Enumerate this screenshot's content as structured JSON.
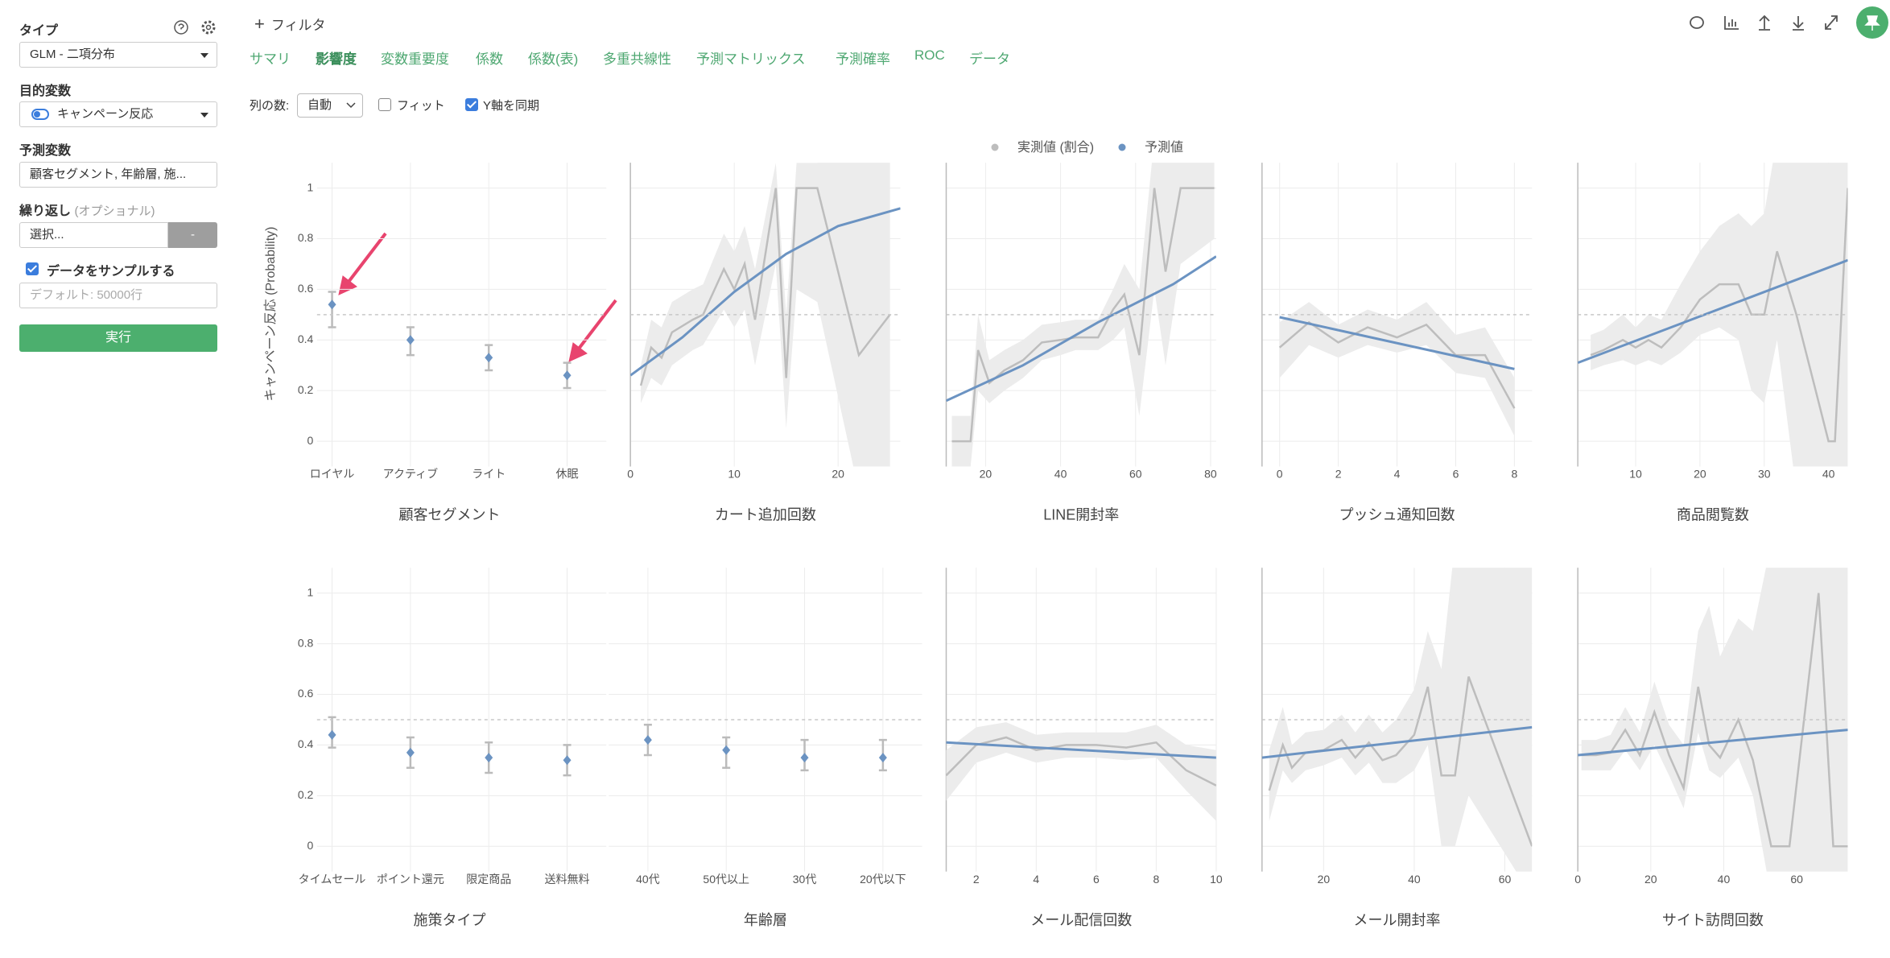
{
  "sidebar": {
    "type_label": "タイプ",
    "type_value": "GLM - 二項分布",
    "target_label": "目的変数",
    "target_value": "キャンペーン反応",
    "predictors_label": "予測変数",
    "predictors_value": "顧客セグメント, 年齢層, 施...",
    "repeat_label": "繰り返し",
    "repeat_hint": "(オプショナル)",
    "repeat_value": "選択...",
    "repeat_button": "-",
    "sample_label": "データをサンプルする",
    "sample_checked": true,
    "sample_placeholder": "デフォルト: 50000行",
    "run_button": "実行"
  },
  "toolbar": {
    "filter": "フィルタ",
    "tabs": [
      "サマリ",
      "影響度",
      "変数重要度",
      "係数",
      "係数(表)",
      "多重共線性",
      "予測マトリックス",
      "予測確率",
      "ROC",
      "データ"
    ],
    "active_tab": 1
  },
  "options": {
    "columns_label": "列の数:",
    "columns_value": "自動",
    "fit_label": "フィット",
    "fit_checked": false,
    "sync_label": "Y軸を同期",
    "sync_checked": true
  },
  "legend": [
    {
      "name": "実測値 (割合)",
      "color": "#bdbdbd"
    },
    {
      "name": "予測値",
      "color": "#6b93c2"
    }
  ],
  "band_color": "#ececec",
  "y_axis_title": "キャンペーン反応 (Probability)",
  "chart_data": [
    {
      "type": "errorbar",
      "title": "顧客セグメント",
      "categories": [
        "ロイヤル",
        "アクティブ",
        "ライト",
        "休眠"
      ],
      "values": [
        0.54,
        0.4,
        0.33,
        0.26
      ],
      "lower": [
        0.45,
        0.34,
        0.28,
        0.21
      ],
      "upper": [
        0.59,
        0.45,
        0.38,
        0.31
      ],
      "ylim": [
        -0.1,
        1.1
      ],
      "yticks": [
        0,
        0.2,
        0.4,
        0.6,
        0.8,
        1
      ],
      "reference": 0.5
    },
    {
      "type": "line",
      "title": "カート追加回数",
      "xlim": [
        0,
        26
      ],
      "xticks": [
        0,
        10,
        20
      ],
      "ylim": [
        -0.1,
        1.1
      ],
      "yticks": [
        0,
        0.2,
        0.4,
        0.6,
        0.8,
        1
      ],
      "reference": 0.5,
      "actual": {
        "x": [
          1,
          2,
          3,
          4,
          6,
          7,
          9,
          10,
          11,
          12,
          14,
          15,
          16,
          18,
          22,
          25
        ],
        "values": [
          0.22,
          0.37,
          0.33,
          0.43,
          0.48,
          0.5,
          0.68,
          0.6,
          0.7,
          0.48,
          1,
          0.25,
          1,
          1,
          0.34,
          0.5
        ],
        "lower": [
          0.15,
          0.25,
          0.22,
          0.3,
          0.36,
          0.38,
          0.52,
          0.45,
          0.52,
          0.3,
          0.7,
          0.05,
          0.6,
          0.55,
          -0.2,
          -0.2
        ],
        "upper": [
          0.3,
          0.48,
          0.45,
          0.55,
          0.6,
          0.62,
          0.82,
          0.75,
          0.85,
          0.68,
          1.1,
          0.5,
          1.1,
          1.1,
          1.2,
          1.2
        ]
      },
      "predicted": {
        "x": [
          0,
          5,
          10,
          15,
          20,
          26
        ],
        "values": [
          0.26,
          0.41,
          0.59,
          0.74,
          0.85,
          0.92
        ]
      }
    },
    {
      "type": "line",
      "title": "LINE開封率",
      "xlim": [
        9.5,
        81.5
      ],
      "xticks": [
        20,
        40,
        60,
        80
      ],
      "ylim": [
        -0.1,
        1.1
      ],
      "yticks": [
        0,
        0.2,
        0.4,
        0.6,
        0.8,
        1
      ],
      "reference": 0.5,
      "actual": {
        "x": [
          11,
          16,
          18,
          21,
          25,
          30,
          35,
          40,
          44,
          50,
          54,
          57,
          61,
          65,
          68,
          72,
          81
        ],
        "values": [
          0,
          0,
          0.36,
          0.23,
          0.28,
          0.32,
          0.39,
          0.4,
          0.41,
          0.41,
          0.52,
          0.58,
          0.34,
          1,
          0.67,
          1,
          1
        ],
        "lower": [
          -0.1,
          -0.1,
          0.2,
          0.15,
          0.2,
          0.25,
          0.32,
          0.34,
          0.36,
          0.36,
          0.4,
          0.45,
          0.1,
          0.6,
          0.3,
          0.7,
          0.8
        ],
        "upper": [
          0.1,
          0.1,
          0.5,
          0.32,
          0.36,
          0.4,
          0.46,
          0.47,
          0.48,
          0.48,
          0.6,
          0.7,
          0.6,
          1.2,
          1.1,
          1.2,
          1.2
        ]
      },
      "predicted": {
        "x": [
          9.5,
          30,
          50,
          70,
          81.5
        ],
        "values": [
          0.16,
          0.3,
          0.47,
          0.62,
          0.73
        ]
      }
    },
    {
      "type": "line",
      "title": "プッシュ通知回数",
      "xlim": [
        -0.6,
        8.6
      ],
      "xticks": [
        0,
        2,
        4,
        6,
        8
      ],
      "ylim": [
        -0.1,
        1.1
      ],
      "yticks": [
        0,
        0.2,
        0.4,
        0.6,
        0.8,
        1
      ],
      "reference": 0.5,
      "actual": {
        "x": [
          0,
          1,
          2,
          3,
          4,
          5,
          6,
          7,
          8
        ],
        "values": [
          0.37,
          0.47,
          0.39,
          0.45,
          0.41,
          0.46,
          0.34,
          0.34,
          0.13
        ],
        "lower": [
          0.25,
          0.38,
          0.33,
          0.38,
          0.35,
          0.38,
          0.27,
          0.25,
          0.02
        ],
        "upper": [
          0.47,
          0.55,
          0.46,
          0.52,
          0.48,
          0.55,
          0.42,
          0.45,
          0.25
        ]
      },
      "predicted": {
        "x": [
          0,
          8
        ],
        "values": [
          0.49,
          0.285
        ]
      }
    },
    {
      "type": "line",
      "title": "商品閲覧数",
      "xlim": [
        1,
        43
      ],
      "xticks": [
        10,
        20,
        30,
        40
      ],
      "ylim": [
        -0.1,
        1.1
      ],
      "yticks": [
        0,
        0.2,
        0.4,
        0.6,
        0.8,
        1
      ],
      "reference": 0.5,
      "actual": {
        "x": [
          3,
          5,
          8,
          10,
          12,
          14,
          17,
          20,
          23,
          26,
          28,
          30,
          32,
          35,
          38,
          40,
          41,
          43
        ],
        "values": [
          0.34,
          0.36,
          0.4,
          0.37,
          0.4,
          0.37,
          0.45,
          0.56,
          0.62,
          0.62,
          0.5,
          0.5,
          0.75,
          0.5,
          0.2,
          0,
          0,
          1
        ],
        "lower": [
          0.28,
          0.3,
          0.32,
          0.3,
          0.32,
          0.3,
          0.35,
          0.42,
          0.45,
          0.4,
          0.2,
          0.15,
          0.4,
          -0.2,
          -0.2,
          -0.2,
          -0.2,
          -0.2
        ],
        "upper": [
          0.42,
          0.44,
          0.5,
          0.45,
          0.5,
          0.48,
          0.62,
          0.75,
          0.85,
          0.9,
          0.85,
          0.9,
          1.2,
          1.2,
          1.2,
          1.2,
          1.2,
          1.2
        ]
      },
      "predicted": {
        "x": [
          1,
          43
        ],
        "values": [
          0.31,
          0.715
        ]
      }
    },
    {
      "type": "errorbar",
      "title": "施策タイプ",
      "categories": [
        "タイムセール",
        "ポイント還元",
        "限定商品",
        "送料無料"
      ],
      "values": [
        0.44,
        0.37,
        0.35,
        0.34
      ],
      "lower": [
        0.39,
        0.31,
        0.29,
        0.28
      ],
      "upper": [
        0.51,
        0.43,
        0.41,
        0.4
      ],
      "ylim": [
        -0.1,
        1.1
      ],
      "yticks": [
        0,
        0.2,
        0.4,
        0.6,
        0.8,
        1
      ],
      "reference": 0.5
    },
    {
      "type": "errorbar",
      "title": "年齢層",
      "categories": [
        "40代",
        "50代以上",
        "30代",
        "20代以下"
      ],
      "values": [
        0.42,
        0.38,
        0.35,
        0.35
      ],
      "lower": [
        0.36,
        0.31,
        0.3,
        0.3
      ],
      "upper": [
        0.48,
        0.43,
        0.42,
        0.42
      ],
      "ylim": [
        -0.1,
        1.1
      ],
      "yticks": [
        0,
        0.2,
        0.4,
        0.6,
        0.8,
        1
      ],
      "reference": 0.5
    },
    {
      "type": "line",
      "title": "メール配信回数",
      "xlim": [
        1,
        10
      ],
      "xticks": [
        2,
        4,
        6,
        8,
        10
      ],
      "ylim": [
        -0.1,
        1.1
      ],
      "yticks": [
        0,
        0.2,
        0.4,
        0.6,
        0.8,
        1
      ],
      "reference": 0.5,
      "actual": {
        "x": [
          1,
          2,
          3,
          4,
          5,
          6,
          7,
          8,
          9,
          10
        ],
        "values": [
          0.28,
          0.4,
          0.43,
          0.38,
          0.4,
          0.4,
          0.39,
          0.41,
          0.3,
          0.24
        ],
        "lower": [
          0.18,
          0.33,
          0.37,
          0.33,
          0.35,
          0.35,
          0.34,
          0.35,
          0.22,
          0.1
        ],
        "upper": [
          0.38,
          0.47,
          0.49,
          0.44,
          0.45,
          0.45,
          0.45,
          0.48,
          0.4,
          0.38
        ]
      },
      "predicted": {
        "x": [
          1,
          10
        ],
        "values": [
          0.41,
          0.35
        ]
      }
    },
    {
      "type": "line",
      "title": "メール開封率",
      "xlim": [
        6.4,
        66
      ],
      "xticks": [
        20,
        40,
        60
      ],
      "ylim": [
        -0.1,
        1.1
      ],
      "yticks": [
        0,
        0.2,
        0.4,
        0.6,
        0.8,
        1
      ],
      "reference": 0.5,
      "actual": {
        "x": [
          8,
          11,
          13,
          16,
          20,
          24,
          27,
          30,
          33,
          36,
          40,
          43,
          46,
          49,
          52,
          66
        ],
        "values": [
          0.22,
          0.4,
          0.31,
          0.37,
          0.38,
          0.42,
          0.35,
          0.41,
          0.34,
          0.36,
          0.44,
          0.63,
          0.28,
          0.28,
          0.67,
          0
        ],
        "lower": [
          0.1,
          0.3,
          0.25,
          0.3,
          0.32,
          0.35,
          0.28,
          0.33,
          0.25,
          0.25,
          0.3,
          0.4,
          0,
          0,
          0.2,
          -0.2
        ],
        "upper": [
          0.38,
          0.55,
          0.4,
          0.45,
          0.46,
          0.52,
          0.45,
          0.52,
          0.45,
          0.5,
          0.62,
          0.85,
          0.7,
          1.2,
          1.2,
          1.2
        ]
      },
      "predicted": {
        "x": [
          6.4,
          66
        ],
        "values": [
          0.35,
          0.47
        ]
      }
    },
    {
      "type": "line",
      "title": "サイト訪問回数",
      "xlim": [
        0,
        74
      ],
      "xticks": [
        0,
        20,
        40,
        60
      ],
      "ylim": [
        -0.1,
        1.1
      ],
      "yticks": [
        0,
        0.2,
        0.4,
        0.6,
        0.8,
        1
      ],
      "reference": 0.5,
      "actual": {
        "x": [
          1,
          5,
          9,
          13,
          17,
          21,
          25,
          29,
          33,
          36,
          39,
          44,
          48,
          53,
          58,
          66,
          70,
          74
        ],
        "values": [
          0.36,
          0.36,
          0.37,
          0.46,
          0.36,
          0.53,
          0.36,
          0.23,
          0.63,
          0.4,
          0.35,
          0.5,
          0.34,
          0,
          0,
          1,
          0,
          0
        ],
        "lower": [
          0.3,
          0.3,
          0.3,
          0.38,
          0.3,
          0.4,
          0.28,
          0.15,
          0.45,
          0.3,
          0.27,
          0.35,
          0.2,
          -0.2,
          -0.2,
          -0.2,
          -0.2,
          -0.2
        ],
        "upper": [
          0.42,
          0.42,
          0.44,
          0.55,
          0.45,
          0.65,
          0.48,
          0.4,
          0.85,
          0.95,
          0.75,
          0.9,
          0.85,
          1.2,
          1.2,
          1.2,
          1.2,
          1.2
        ]
      },
      "predicted": {
        "x": [
          0,
          74
        ],
        "values": [
          0.36,
          0.46
        ]
      }
    }
  ]
}
